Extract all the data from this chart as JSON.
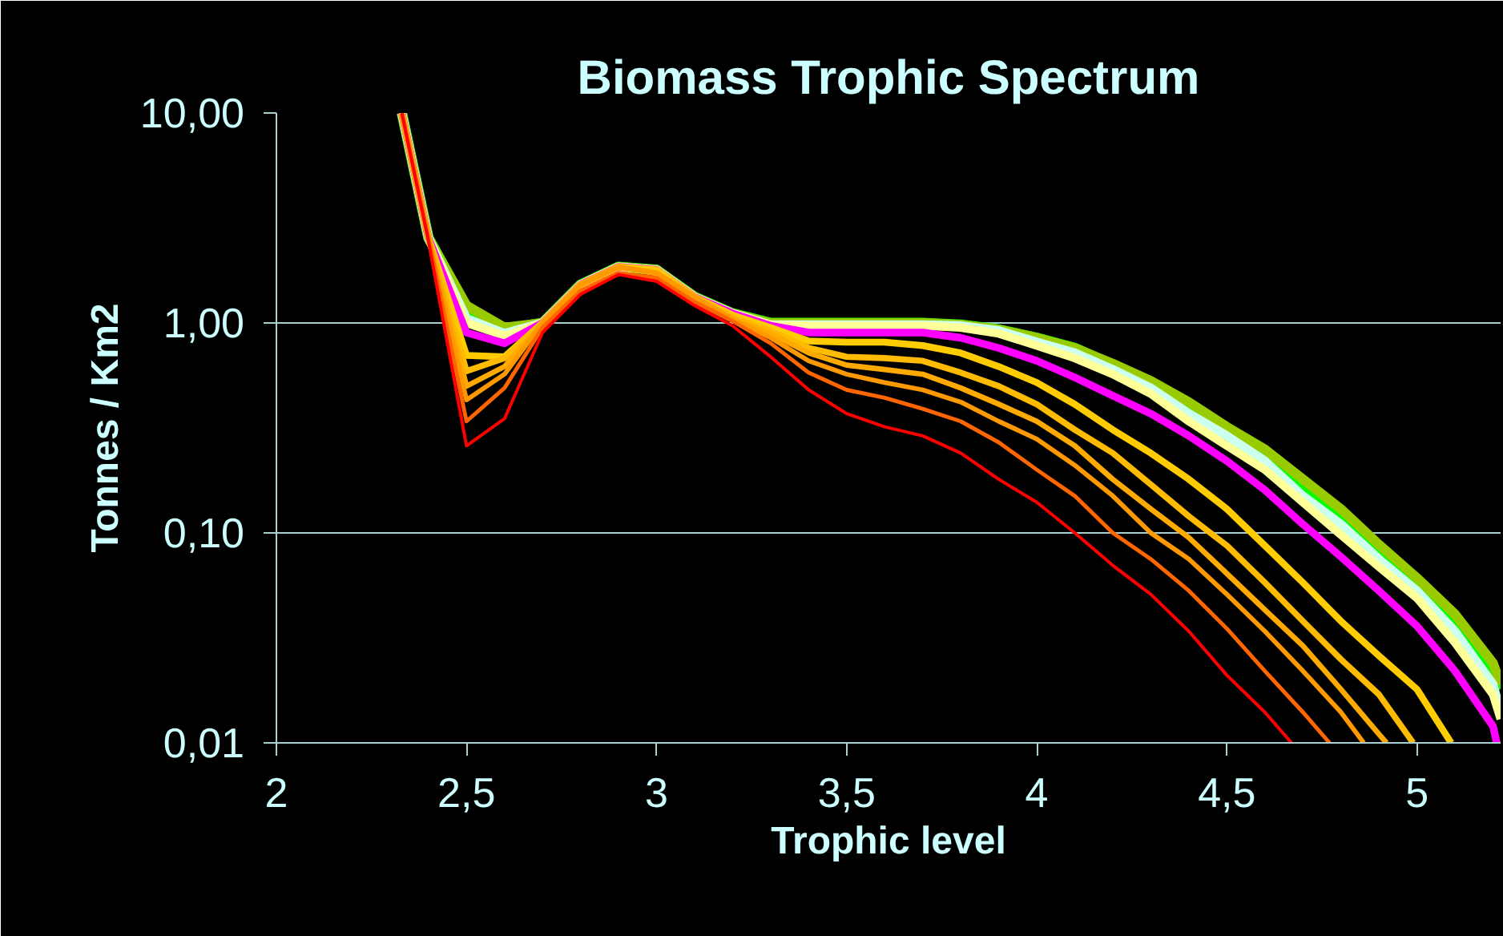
{
  "chart_data": {
    "type": "line",
    "title": "Biomass Trophic Spectrum",
    "xlabel": "Trophic level",
    "ylabel": "Tonnes / Km2",
    "log": true,
    "grid": "y",
    "xlim": [
      2,
      5.22
    ],
    "ylim": [
      0.01,
      10
    ],
    "xticks": [
      2,
      {
        "value": 2.5,
        "label": "2,5"
      },
      3,
      {
        "value": 3.5,
        "label": "3,5"
      },
      4,
      {
        "value": 4.5,
        "label": "4,5"
      },
      5
    ],
    "yticks": [
      {
        "value": 0.01,
        "label": "0,01"
      },
      {
        "value": 0.1,
        "label": "0,10"
      },
      {
        "value": 1,
        "label": "1,00"
      },
      {
        "value": 10,
        "label": "10,00"
      }
    ],
    "series": [
      {
        "color": "#00ff00",
        "x": [
          2.33,
          2.4,
          2.5,
          2.6,
          2.7,
          2.8,
          2.9,
          3.0,
          3.1,
          3.2,
          3.3,
          3.4,
          3.5,
          3.6,
          3.7,
          3.8,
          3.9,
          4.0,
          4.1,
          4.2,
          4.3,
          4.4,
          4.5,
          4.6,
          4.7,
          4.8,
          4.9,
          5.0,
          5.1,
          5.2,
          5.22
        ],
        "values": [
          10,
          2.54,
          1.19,
          0.93,
          1.0,
          1.52,
          1.85,
          1.79,
          1.33,
          1.11,
          1.0,
          1.0,
          1.0,
          1.0,
          1.0,
          0.98,
          0.93,
          0.85,
          0.76,
          0.63,
          0.52,
          0.41,
          0.31,
          0.24,
          0.17,
          0.12,
          0.084,
          0.059,
          0.039,
          0.022,
          0.018
        ]
      },
      {
        "color": "#99cc00",
        "x": [
          2.33,
          2.4,
          2.5,
          2.6,
          2.7,
          2.8,
          2.9,
          3.0,
          3.1,
          3.2,
          3.3,
          3.4,
          3.5,
          3.6,
          3.7,
          3.8,
          3.9,
          4.0,
          4.1,
          4.2,
          4.3,
          4.4,
          4.5,
          4.6,
          4.7,
          4.8,
          4.9,
          5.0,
          5.1,
          5.2,
          5.22
        ],
        "values": [
          10,
          2.54,
          1.21,
          0.95,
          1.0,
          1.52,
          1.85,
          1.79,
          1.33,
          1.11,
          1.0,
          1.0,
          1.0,
          1.0,
          1.0,
          0.98,
          0.93,
          0.85,
          0.76,
          0.64,
          0.53,
          0.42,
          0.32,
          0.25,
          0.18,
          0.13,
          0.088,
          0.061,
          0.041,
          0.024,
          0.019
        ]
      },
      {
        "color": "#ccffee",
        "x": [
          2.33,
          2.4,
          2.5,
          2.6,
          2.7,
          2.8,
          2.9,
          3.0,
          3.1,
          3.2,
          3.3,
          3.4,
          3.5,
          3.6,
          3.7,
          3.8,
          3.9,
          4.0,
          4.1,
          4.2,
          4.3,
          4.4,
          4.5,
          4.6,
          4.7,
          4.8,
          4.9,
          5.0,
          5.1,
          5.2,
          5.22
        ],
        "values": [
          10,
          2.54,
          1.05,
          0.89,
          1.0,
          1.52,
          1.85,
          1.79,
          1.33,
          1.11,
          0.98,
          0.98,
          0.98,
          0.98,
          0.98,
          0.97,
          0.92,
          0.81,
          0.72,
          0.6,
          0.49,
          0.37,
          0.29,
          0.22,
          0.15,
          0.11,
          0.075,
          0.053,
          0.034,
          0.019,
          0.014
        ]
      },
      {
        "color": "#ffff99",
        "x": [
          2.33,
          2.4,
          2.5,
          2.6,
          2.7,
          2.8,
          2.9,
          3.0,
          3.1,
          3.2,
          3.3,
          3.4,
          3.5,
          3.6,
          3.7,
          3.8,
          3.9,
          4.0,
          4.1,
          4.2,
          4.3,
          4.4,
          4.5,
          4.6,
          4.7,
          4.8,
          4.9,
          5.0,
          5.1,
          5.2,
          5.22
        ],
        "values": [
          10,
          2.54,
          1.0,
          0.87,
          1.0,
          1.52,
          1.85,
          1.79,
          1.33,
          1.11,
          0.98,
          0.97,
          0.97,
          0.97,
          0.97,
          0.95,
          0.89,
          0.78,
          0.68,
          0.57,
          0.46,
          0.34,
          0.26,
          0.2,
          0.14,
          0.098,
          0.069,
          0.049,
          0.03,
          0.017,
          0.013
        ]
      },
      {
        "color": "#ff00ff",
        "x": [
          2.33,
          2.4,
          2.5,
          2.6,
          2.7,
          2.8,
          2.9,
          3.0,
          3.1,
          3.2,
          3.3,
          3.4,
          3.5,
          3.6,
          3.7,
          3.8,
          3.9,
          4.0,
          4.1,
          4.2,
          4.3,
          4.4,
          4.5,
          4.6,
          4.7,
          4.8,
          4.9,
          5.0,
          5.1,
          5.2,
          5.21
        ],
        "values": [
          10,
          2.54,
          0.9,
          0.8,
          1.0,
          1.52,
          1.85,
          1.79,
          1.33,
          1.11,
          0.97,
          0.9,
          0.9,
          0.9,
          0.9,
          0.85,
          0.76,
          0.66,
          0.55,
          0.45,
          0.37,
          0.29,
          0.22,
          0.16,
          0.11,
          0.077,
          0.053,
          0.036,
          0.022,
          0.012,
          0.01
        ]
      },
      {
        "color": "#ffcc00",
        "x": [
          2.33,
          2.4,
          2.5,
          2.6,
          2.7,
          2.8,
          2.9,
          3.0,
          3.1,
          3.2,
          3.3,
          3.4,
          3.5,
          3.6,
          3.7,
          3.8,
          3.9,
          4.0,
          4.1,
          4.2,
          4.3,
          4.4,
          4.5,
          4.6,
          4.7,
          4.8,
          4.9,
          5.0,
          5.09
        ],
        "values": [
          10,
          2.54,
          0.7,
          0.69,
          1.0,
          1.52,
          1.85,
          1.79,
          1.33,
          1.09,
          0.95,
          0.82,
          0.81,
          0.81,
          0.78,
          0.72,
          0.62,
          0.52,
          0.41,
          0.31,
          0.24,
          0.18,
          0.13,
          0.087,
          0.058,
          0.038,
          0.026,
          0.018,
          0.01
        ]
      },
      {
        "color": "#ffbb00",
        "x": [
          2.33,
          2.4,
          2.5,
          2.6,
          2.7,
          2.8,
          2.9,
          3.0,
          3.1,
          3.2,
          3.3,
          3.4,
          3.5,
          3.6,
          3.7,
          3.8,
          3.9,
          4.0,
          4.1,
          4.2,
          4.3,
          4.4,
          4.5,
          4.6,
          4.7,
          4.8,
          4.9,
          4.99
        ],
        "values": [
          10,
          2.54,
          0.59,
          0.68,
          1.0,
          1.52,
          1.85,
          1.73,
          1.33,
          1.07,
          0.92,
          0.76,
          0.69,
          0.68,
          0.66,
          0.58,
          0.5,
          0.41,
          0.31,
          0.24,
          0.17,
          0.12,
          0.087,
          0.058,
          0.038,
          0.025,
          0.017,
          0.01
        ]
      },
      {
        "color": "#ffaa00",
        "x": [
          2.33,
          2.4,
          2.5,
          2.6,
          2.7,
          2.8,
          2.9,
          3.0,
          3.1,
          3.2,
          3.3,
          3.4,
          3.5,
          3.6,
          3.7,
          3.8,
          3.9,
          4.0,
          4.1,
          4.2,
          4.3,
          4.4,
          4.5,
          4.6,
          4.7,
          4.8,
          4.9,
          4.92
        ],
        "values": [
          10,
          2.54,
          0.5,
          0.62,
          1.0,
          1.52,
          1.85,
          1.73,
          1.33,
          1.05,
          0.89,
          0.72,
          0.63,
          0.6,
          0.57,
          0.49,
          0.41,
          0.34,
          0.26,
          0.18,
          0.13,
          0.095,
          0.064,
          0.043,
          0.029,
          0.018,
          0.011,
          0.01
        ]
      },
      {
        "color": "#ff9900",
        "x": [
          2.33,
          2.4,
          2.5,
          2.6,
          2.7,
          2.8,
          2.9,
          3.0,
          3.1,
          3.2,
          3.3,
          3.4,
          3.5,
          3.6,
          3.7,
          3.8,
          3.9,
          4.0,
          4.1,
          4.2,
          4.3,
          4.4,
          4.5,
          4.6,
          4.7,
          4.8,
          4.86
        ],
        "values": [
          10,
          2.54,
          0.43,
          0.57,
          1.0,
          1.52,
          1.85,
          1.73,
          1.33,
          1.04,
          0.85,
          0.66,
          0.57,
          0.52,
          0.48,
          0.42,
          0.34,
          0.28,
          0.21,
          0.15,
          0.1,
          0.075,
          0.051,
          0.034,
          0.022,
          0.014,
          0.01
        ]
      },
      {
        "color": "#ff6600",
        "x": [
          2.33,
          2.4,
          2.5,
          2.6,
          2.7,
          2.8,
          2.9,
          3.0,
          3.1,
          3.2,
          3.3,
          3.4,
          3.5,
          3.6,
          3.7,
          3.8,
          3.9,
          4.0,
          4.1,
          4.2,
          4.3,
          4.4,
          4.5,
          4.6,
          4.7,
          4.77
        ],
        "values": [
          10,
          2.54,
          0.34,
          0.49,
          0.95,
          1.42,
          1.73,
          1.64,
          1.26,
          1.02,
          0.8,
          0.58,
          0.48,
          0.44,
          0.39,
          0.34,
          0.27,
          0.2,
          0.15,
          0.1,
          0.075,
          0.053,
          0.035,
          0.022,
          0.014,
          0.01
        ]
      },
      {
        "color": "#ff0000",
        "x": [
          2.33,
          2.4,
          2.5,
          2.6,
          2.7,
          2.8,
          2.9,
          3.0,
          3.1,
          3.2,
          3.3,
          3.4,
          3.5,
          3.6,
          3.7,
          3.8,
          3.9,
          4.0,
          4.1,
          4.2,
          4.3,
          4.4,
          4.5,
          4.6,
          4.67
        ],
        "values": [
          10,
          2.45,
          0.26,
          0.35,
          0.9,
          1.37,
          1.7,
          1.58,
          1.21,
          0.97,
          0.69,
          0.48,
          0.37,
          0.32,
          0.29,
          0.24,
          0.18,
          0.14,
          0.1,
          0.07,
          0.051,
          0.034,
          0.021,
          0.014,
          0.01
        ]
      }
    ]
  }
}
